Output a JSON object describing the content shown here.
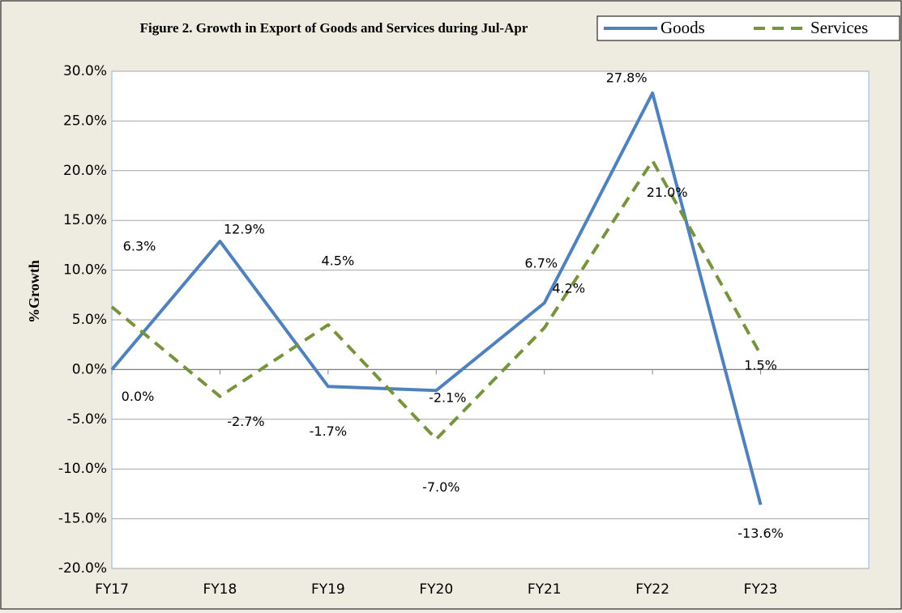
{
  "chart_data": {
    "type": "line",
    "title": "Figure 2. Growth in Export of Goods and Services during Jul-Apr",
    "y_label": "%Growth",
    "categories": [
      "FY17",
      "FY18",
      "FY19",
      "FY20",
      "FY21",
      "FY22",
      "FY23"
    ],
    "series": [
      {
        "name": "Goods",
        "color": "#4f81bd",
        "dash": false,
        "values": [
          0.0,
          12.9,
          -1.7,
          -2.1,
          6.7,
          27.8,
          -13.6
        ],
        "value_labels": [
          "0.0%",
          "12.9%",
          "-1.7%",
          "-2.1%",
          "6.7%",
          "27.8%",
          "-13.6%"
        ]
      },
      {
        "name": "Services",
        "color": "#77933c",
        "dash": true,
        "values": [
          6.3,
          -2.7,
          4.5,
          -7.0,
          4.2,
          21.0,
          1.5
        ],
        "value_labels": [
          "6.3%",
          "-2.7%",
          "4.5%",
          "-7.0%",
          "4.2%",
          "21.0%",
          "1.5%"
        ]
      }
    ],
    "ylim": [
      -20,
      30
    ],
    "yticks": [
      {
        "value": -20,
        "label": "-20.0%"
      },
      {
        "value": -15,
        "label": "-15.0%"
      },
      {
        "value": -10,
        "label": "-10.0%"
      },
      {
        "value": -5,
        "label": "-5.0%"
      },
      {
        "value": 0,
        "label": "0.0%"
      },
      {
        "value": 5,
        "label": "5.0%"
      },
      {
        "value": 10,
        "label": "10.0%"
      },
      {
        "value": 15,
        "label": "15.0%"
      },
      {
        "value": 20,
        "label": "20.0%"
      },
      {
        "value": 25,
        "label": "25.0%"
      },
      {
        "value": 30,
        "label": "30.0%"
      }
    ],
    "grid": true,
    "legend": "top-right"
  }
}
